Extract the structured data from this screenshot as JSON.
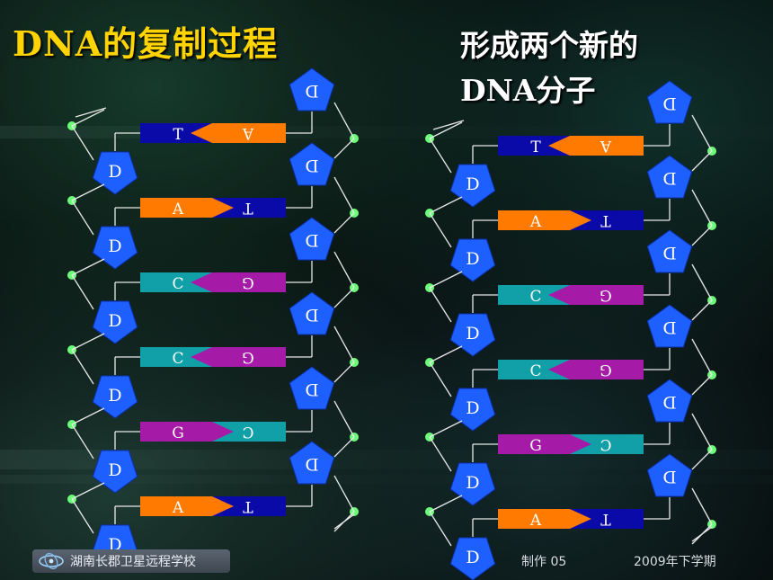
{
  "title": "DNA的复制过程",
  "subtitle_lines": [
    "形成两个新的",
    "DNA分子"
  ],
  "footer": {
    "school": "湖南长郡卫星远程学校",
    "made": "制作 05",
    "term": "2009年下学期"
  },
  "sugar_label": "D",
  "strands": [
    {
      "name": "left",
      "pairs": [
        {
          "left": "T",
          "right": "A"
        },
        {
          "left": "A",
          "right": "T"
        },
        {
          "left": "C",
          "right": "G"
        },
        {
          "left": "C",
          "right": "G"
        },
        {
          "left": "G",
          "right": "C"
        },
        {
          "left": "A",
          "right": "T"
        }
      ]
    },
    {
      "name": "right",
      "pairs": [
        {
          "left": "T",
          "right": "A"
        },
        {
          "left": "A",
          "right": "T"
        },
        {
          "left": "C",
          "right": "G"
        },
        {
          "left": "C",
          "right": "G"
        },
        {
          "left": "G",
          "right": "C"
        },
        {
          "left": "A",
          "right": "T"
        }
      ]
    }
  ],
  "colors": {
    "A": "#ff7a00",
    "T": "#0a0aa8",
    "C": "#11a0a8",
    "G": "#a61aa8",
    "sugar": "#1e5fff",
    "phosphate": "#6bff7a",
    "title": "#ffd400"
  }
}
